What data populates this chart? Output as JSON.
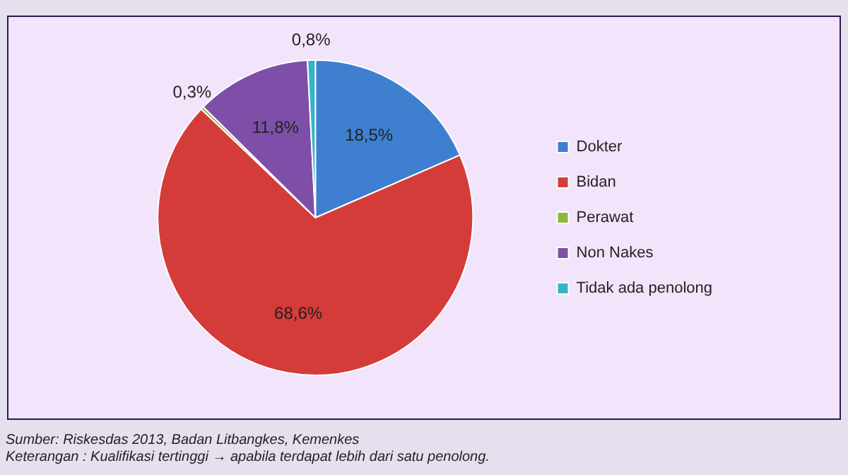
{
  "chart_data": {
    "type": "pie",
    "categories": [
      "Dokter",
      "Bidan",
      "Perawat",
      "Non Nakes",
      "Tidak ada penolong"
    ],
    "values": [
      18.5,
      68.6,
      0.3,
      11.8,
      0.8
    ],
    "colors": [
      "#3f7fd0",
      "#d43c3a",
      "#8cb83a",
      "#7e4fa8",
      "#35b4c8"
    ],
    "value_labels": [
      "18,5%",
      "68,6%",
      "0,3%",
      "11,8%",
      "0,8%"
    ],
    "legend": "right",
    "annotations": [
      "Sumber: Riskesdas 2013, Badan Litbangkes, Kemenkes",
      "Keterangan : Kualifikasi tertinggi → apabila terdapat lebih dari satu penolong."
    ]
  }
}
